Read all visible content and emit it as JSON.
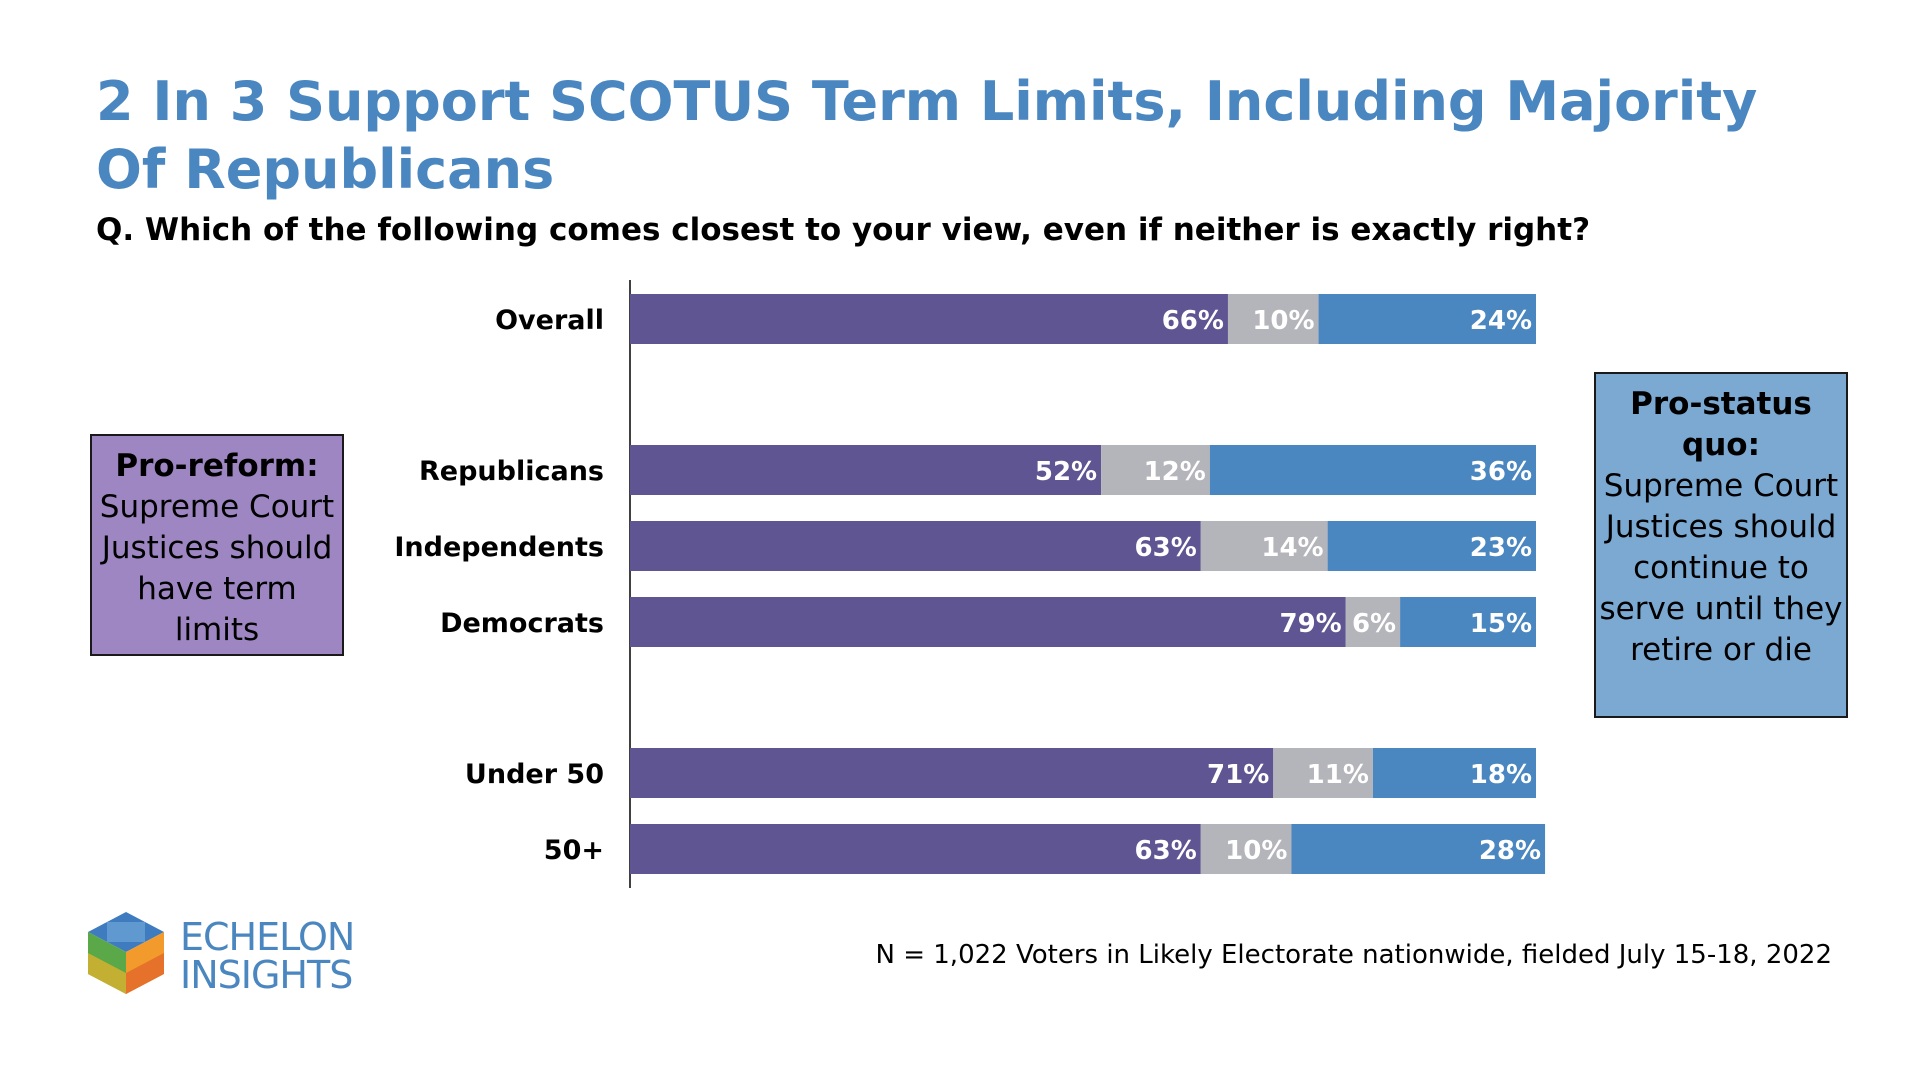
{
  "title": "2 In 3 Support SCOTUS Term Limits, Including Majority Of Republicans",
  "subtitle": "Q. Which of the following comes closest to your view, even if neither is exactly right?",
  "callouts": {
    "left": {
      "lead": "Pro-reform:",
      "body": "Supreme Court Justices should have term limits",
      "color": "#9d86c2"
    },
    "right": {
      "lead": "Pro-status quo:",
      "body": "Supreme Court Justices should continue to serve until they retire or die",
      "color": "#7ba9d2"
    }
  },
  "footnote": "N = 1,022 Voters in Likely Electorate nationwide, fielded July 15-18, 2022",
  "logo": {
    "line1": "ECHELON",
    "line2": "INSIGHTS",
    "icon": "cube-logo-icon"
  },
  "chart_data": {
    "type": "bar",
    "orientation": "horizontal",
    "stacked": true,
    "categories": [
      "Overall",
      "Republicans",
      "Independents",
      "Democrats",
      "Under 50",
      "50+"
    ],
    "groups": [
      [
        0
      ],
      [
        1,
        2,
        3
      ],
      [
        4,
        5
      ]
    ],
    "series": [
      {
        "values": [
          66,
          52,
          63,
          79,
          71,
          63
        ],
        "labels": [
          "66%",
          "52%",
          "63%",
          "79%",
          "71%",
          "63%"
        ],
        "color": "#5e5592"
      },
      {
        "values": [
          10,
          12,
          14,
          6,
          11,
          10
        ],
        "labels": [
          "10%",
          "12%",
          "14%",
          "6%",
          "11%",
          "10%"
        ],
        "color": "#b4b5ba"
      },
      {
        "values": [
          24,
          36,
          23,
          15,
          18,
          28
        ],
        "labels": [
          "24%",
          "36%",
          "23%",
          "15%",
          "18%",
          "28%"
        ],
        "color": "#4a86bf"
      }
    ],
    "xlim": [
      0,
      100
    ],
    "grid": false
  }
}
